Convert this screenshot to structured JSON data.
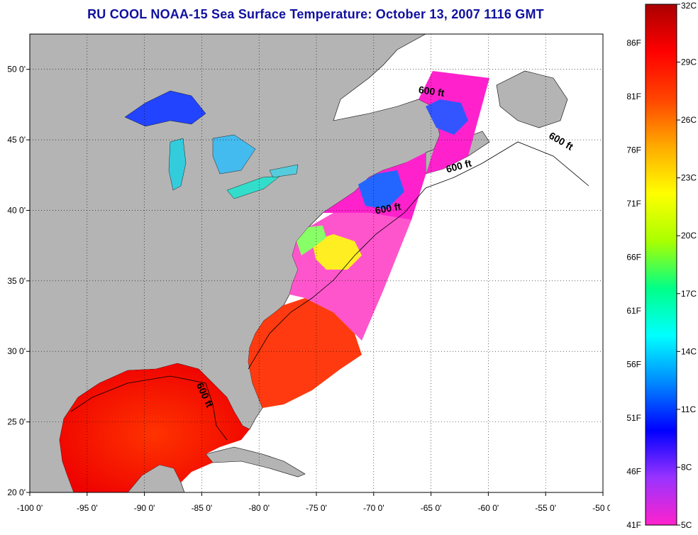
{
  "title": "RU COOL  NOAA-15  Sea Surface Temperature:  October 13, 2007 1116 GMT",
  "map": {
    "lon_range": [
      -100,
      -50
    ],
    "lat_range": [
      20,
      52.5
    ],
    "lon_ticks": [
      {
        "value": -100,
        "label": "-100 0'"
      },
      {
        "value": -95,
        "label": "-95 0'"
      },
      {
        "value": -90,
        "label": "-90 0'"
      },
      {
        "value": -85,
        "label": "-85 0'"
      },
      {
        "value": -80,
        "label": "-80 0'"
      },
      {
        "value": -75,
        "label": "-75 0'"
      },
      {
        "value": -70,
        "label": "-70 0'"
      },
      {
        "value": -65,
        "label": "-65 0'"
      },
      {
        "value": -60,
        "label": "-60 0'"
      },
      {
        "value": -55,
        "label": "-55 0'"
      },
      {
        "value": -50,
        "label": "-50 0'"
      }
    ],
    "lat_ticks": [
      {
        "value": 20,
        "label": "20 0'"
      },
      {
        "value": 25,
        "label": "25 0'"
      },
      {
        "value": 30,
        "label": "30 0'"
      },
      {
        "value": 35,
        "label": "35 0'"
      },
      {
        "value": 40,
        "label": "40 0'"
      },
      {
        "value": 45,
        "label": "45 0'"
      },
      {
        "value": 50,
        "label": "50 0'"
      }
    ],
    "grid": "dotted",
    "land_color": "#b4b4b4",
    "ocean_nodata_color": "#ffffff",
    "contour_label": "600 ft",
    "contour_labels": [
      {
        "lon": -65,
        "lat": 48.2,
        "rot": 8
      },
      {
        "lon": -53.8,
        "lat": 44.7,
        "rot": 30
      },
      {
        "lon": -62.5,
        "lat": 42.9,
        "rot": -15
      },
      {
        "lon": -68.7,
        "lat": 39.9,
        "rot": -10
      },
      {
        "lon": -85,
        "lat": 26.8,
        "rot": 65
      }
    ]
  },
  "colorbar": {
    "left_labels": [
      "41F",
      "46F",
      "51F",
      "56F",
      "61F",
      "66F",
      "71F",
      "76F",
      "81F",
      "86F"
    ],
    "left_values_c": [
      5,
      7.78,
      10.56,
      13.33,
      16.11,
      18.89,
      21.67,
      24.44,
      27.22,
      30
    ],
    "right_labels": [
      "5C",
      "8C",
      "11C",
      "14C",
      "17C",
      "20C",
      "23C",
      "26C",
      "29C",
      "32C"
    ],
    "right_values_c": [
      5,
      8,
      11,
      14,
      17,
      20,
      23,
      26,
      29,
      32
    ],
    "range_c": [
      5,
      32
    ],
    "stops": [
      "#ff22cc",
      "#9933ff",
      "#0000ff",
      "#0088ff",
      "#00ffff",
      "#00ff88",
      "#aaff00",
      "#ffff00",
      "#ffaa00",
      "#ff4400",
      "#ff0000",
      "#aa0000"
    ]
  }
}
